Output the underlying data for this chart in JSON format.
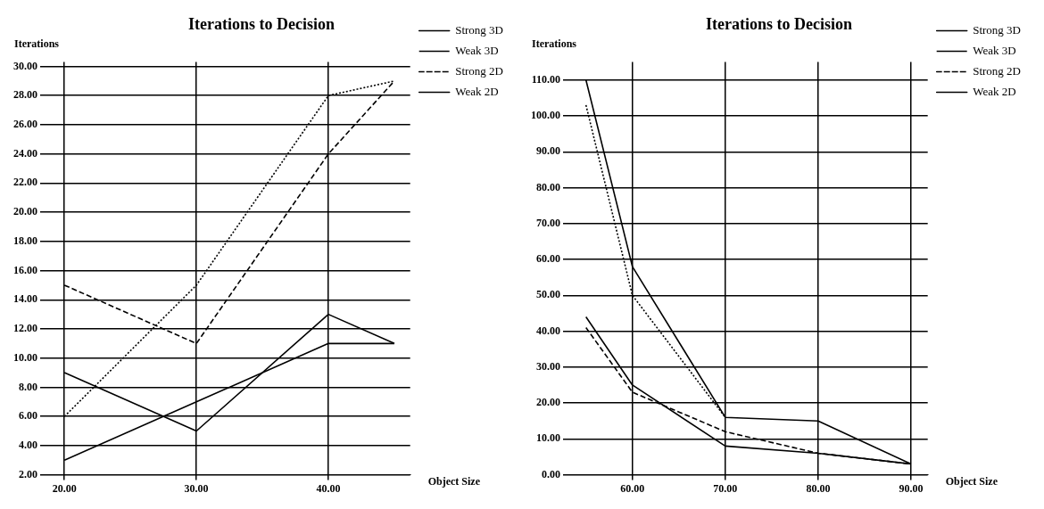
{
  "chart_data": [
    {
      "type": "line",
      "title": "Iterations to Decision",
      "xlabel": "Object Size",
      "ylabel": "Iterations",
      "x": [
        20,
        30,
        40,
        45
      ],
      "xlim": [
        18.7,
        46.2
      ],
      "xticks": [
        {
          "value": 20,
          "label": "20.00"
        },
        {
          "value": 30,
          "label": "30.00"
        },
        {
          "value": 40,
          "label": "40.00"
        }
      ],
      "ylim": [
        2,
        30.3
      ],
      "yticks": [
        {
          "value": 2,
          "label": "2.00"
        },
        {
          "value": 4,
          "label": "4.00"
        },
        {
          "value": 6,
          "label": "6.00"
        },
        {
          "value": 8,
          "label": "8.00"
        },
        {
          "value": 10,
          "label": "10.00"
        },
        {
          "value": 12,
          "label": "12.00"
        },
        {
          "value": 14,
          "label": "14.00"
        },
        {
          "value": 16,
          "label": "16.00"
        },
        {
          "value": 18,
          "label": "18.00"
        },
        {
          "value": 20,
          "label": "20.00"
        },
        {
          "value": 22,
          "label": "22.00"
        },
        {
          "value": 24,
          "label": "24.00"
        },
        {
          "value": 26,
          "label": "26.00"
        },
        {
          "value": 28,
          "label": "28.00"
        },
        {
          "value": 30,
          "label": "30.00"
        }
      ],
      "grid": true,
      "legend": "top right",
      "marker": "none",
      "series": [
        {
          "name": "Strong 3D",
          "color": "#000000",
          "line_style": "solid",
          "values": [
            9,
            5,
            13,
            11
          ]
        },
        {
          "name": "Weak 3D",
          "color": "#000000",
          "line_style": "dotted",
          "values": [
            6,
            15,
            28,
            29
          ]
        },
        {
          "name": "Strong 2D",
          "color": "#000000",
          "line_style": "dashed",
          "values": [
            15,
            11,
            24,
            29
          ]
        },
        {
          "name": "Weak 2D",
          "color": "#000000",
          "line_style": "solid",
          "values": [
            3,
            7,
            11,
            11
          ]
        }
      ]
    },
    {
      "type": "line",
      "title": "Iterations to Decision",
      "xlabel": "Object Size",
      "ylabel": "Iterations",
      "x": [
        55,
        60,
        70,
        80,
        90
      ],
      "xlim": [
        53.3,
        91.8
      ],
      "xticks": [
        {
          "value": 60,
          "label": "60.00"
        },
        {
          "value": 70,
          "label": "70.00"
        },
        {
          "value": 80,
          "label": "80.00"
        },
        {
          "value": 90,
          "label": "90.00"
        }
      ],
      "ylim": [
        0,
        115
      ],
      "yticks": [
        {
          "value": 0,
          "label": "0.00"
        },
        {
          "value": 10,
          "label": "10.00"
        },
        {
          "value": 20,
          "label": "20.00"
        },
        {
          "value": 30,
          "label": "30.00"
        },
        {
          "value": 40,
          "label": "40.00"
        },
        {
          "value": 50,
          "label": "50.00"
        },
        {
          "value": 60,
          "label": "60.00"
        },
        {
          "value": 70,
          "label": "70.00"
        },
        {
          "value": 80,
          "label": "80.00"
        },
        {
          "value": 90,
          "label": "90.00"
        },
        {
          "value": 100,
          "label": "100.00"
        },
        {
          "value": 110,
          "label": "110.00"
        }
      ],
      "grid": true,
      "legend": "top right",
      "marker": "none",
      "series": [
        {
          "name": "Strong 3D",
          "color": "#000000",
          "line_style": "solid",
          "values": [
            110,
            58,
            16,
            15,
            3
          ]
        },
        {
          "name": "Weak 3D",
          "color": "#000000",
          "line_style": "dotted",
          "values": [
            103,
            50,
            16,
            null,
            null
          ]
        },
        {
          "name": "Strong 2D",
          "color": "#000000",
          "line_style": "dashed",
          "values": [
            41,
            23,
            12,
            6,
            3
          ]
        },
        {
          "name": "Weak 2D",
          "color": "#000000",
          "line_style": "solid",
          "values": [
            44,
            25,
            8,
            6,
            3
          ]
        }
      ]
    }
  ]
}
